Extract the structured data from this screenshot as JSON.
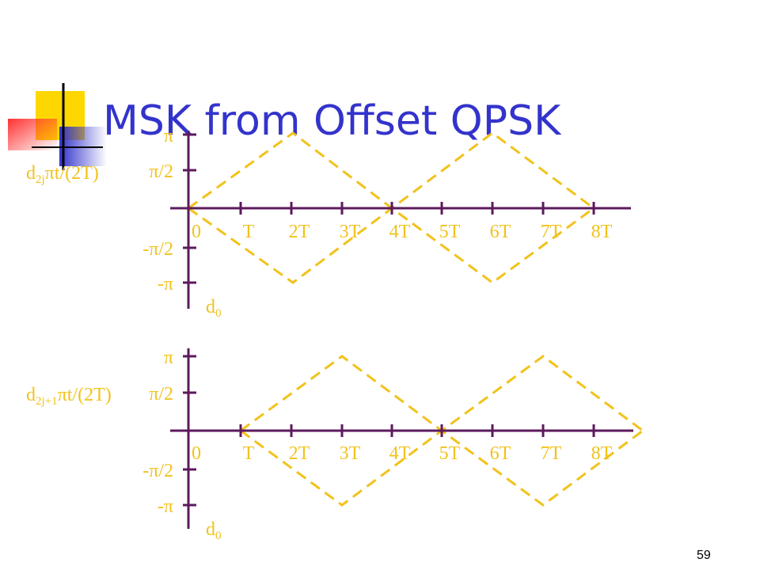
{
  "title": "MSK from Offset QPSK",
  "page_number": "59",
  "plots": [
    {
      "y_label": {
        "main": "d",
        "sub": "2j",
        "rest": "πt/(2T)"
      },
      "y_ticks": [
        "π",
        "π/2",
        "-π/2",
        "-π"
      ],
      "x_ticks": [
        "0",
        "T",
        "2T",
        "3T",
        "4T",
        "5T",
        "6T",
        "7T",
        "8T"
      ],
      "origin_label": {
        "main": "d",
        "sub": "0"
      }
    },
    {
      "y_label": {
        "main": "d",
        "sub": "2j+1",
        "rest": "πt/(2T)"
      },
      "y_ticks": [
        "π",
        "π/2",
        "-π/2",
        "-π"
      ],
      "x_ticks": [
        "0",
        "T",
        "2T",
        "3T",
        "4T",
        "5T",
        "6T",
        "7T",
        "8T"
      ],
      "origin_label": {
        "main": "d",
        "sub": "0"
      }
    }
  ]
}
